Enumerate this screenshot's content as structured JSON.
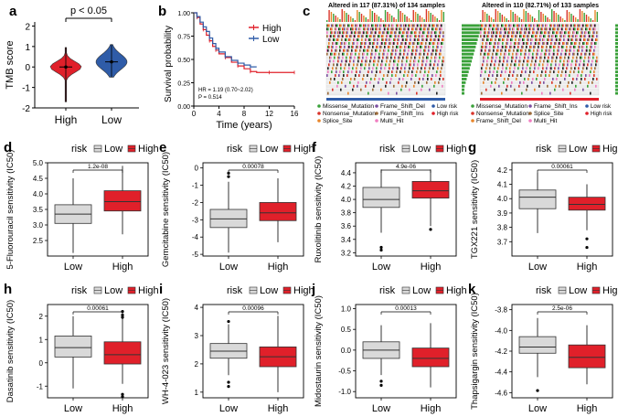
{
  "colors": {
    "high": "#e0202a",
    "low": "#2f5ca8",
    "low_box": "#d9d9d9",
    "axis": "#000000",
    "mut_green": "#3aa13a",
    "mut_red": "#d9342b",
    "mut_orange": "#e8862a",
    "mut_purple": "#7b4fa0",
    "mut_brown": "#9c6b3a",
    "mut_pink": "#f07dc0",
    "mut_black": "#222222"
  },
  "chart_data": [
    {
      "panel": "a",
      "type": "violin",
      "title": "",
      "xlabel": "",
      "ylabel": "TMB score",
      "categories": [
        "High",
        "Low"
      ],
      "ylim": [
        -2,
        2.2
      ],
      "yticks": [
        "-2",
        "-1",
        "0",
        "1",
        "2"
      ],
      "annotation": "p < 0.05",
      "series": [
        {
          "name": "High",
          "median": 0.0,
          "q1": -0.15,
          "q3": 0.2,
          "min": -1.7,
          "max": 0.95
        },
        {
          "name": "Low",
          "median": 0.25,
          "q1": 0.05,
          "q3": 0.55,
          "min": -0.5,
          "max": 1.1
        }
      ]
    },
    {
      "panel": "b",
      "type": "line",
      "title": "",
      "xlabel": "Time (years)",
      "ylabel": "Survival probability",
      "xlim": [
        0,
        16
      ],
      "ylim": [
        0,
        1
      ],
      "xticks": [
        "0",
        "4",
        "8",
        "12",
        "16"
      ],
      "yticks": [
        "0.00",
        "0.25",
        "0.50",
        "0.75",
        "1.00"
      ],
      "legend": [
        "High",
        "Low"
      ],
      "annotations": [
        "HR = 1.19 (0.70~2.02)",
        "P = 0.514"
      ],
      "series": [
        {
          "name": "High",
          "x": [
            0,
            0.5,
            1,
            1.5,
            2,
            2.5,
            3,
            3.5,
            4,
            5,
            6,
            7,
            8,
            9,
            10,
            12,
            14,
            16
          ],
          "y": [
            1,
            0.95,
            0.88,
            0.82,
            0.76,
            0.7,
            0.64,
            0.6,
            0.56,
            0.52,
            0.47,
            0.43,
            0.4,
            0.37,
            0.36,
            0.36,
            0.36,
            0.36
          ]
        },
        {
          "name": "Low",
          "x": [
            0,
            0.5,
            1,
            1.5,
            2,
            2.5,
            3,
            3.5,
            4,
            5,
            6,
            7,
            8,
            9,
            10
          ],
          "y": [
            1,
            0.96,
            0.9,
            0.85,
            0.8,
            0.73,
            0.67,
            0.62,
            0.58,
            0.53,
            0.49,
            0.46,
            0.44,
            0.42,
            0.42
          ]
        }
      ]
    },
    {
      "panel": "c",
      "type": "heatmap",
      "titles": [
        "Altered in 117 (87.31%) of 134 samples",
        "Altered in 110 (82.71%) of 133 samples"
      ],
      "rows": 20,
      "legend_left": [
        "Missense_Mutation",
        "Nonsense_Mutation",
        "Splice_Site",
        "Frame_Shift_Del",
        "Frame_Shift_Ins",
        "Multi_Hit"
      ],
      "legend_mid": [
        "Missense_Mutation",
        "Nonsense_Mutation",
        "Frame_Shift_Del",
        "Frame_Shift_Ins",
        "Splice_Site",
        "Multi_Hit"
      ],
      "risk_legend": [
        "Low risk",
        "High risk"
      ]
    },
    {
      "panel": "d",
      "type": "box",
      "ylabel": "5-Fluorouracil sensitivity (IC50)",
      "legend_title": "risk",
      "legend": [
        "Low",
        "High"
      ],
      "categories": [
        "Low",
        "High"
      ],
      "ylim": [
        2.0,
        5.0
      ],
      "yticks": [
        "2.5",
        "3.0",
        "3.5",
        "4.0",
        "4.5",
        "5.0"
      ],
      "pvalue": "1.2e-08",
      "series": [
        {
          "name": "Low",
          "min": 2.1,
          "q1": 3.05,
          "median": 3.35,
          "q3": 3.65,
          "max": 4.5,
          "outliers": []
        },
        {
          "name": "High",
          "min": 2.7,
          "q1": 3.45,
          "median": 3.75,
          "q3": 4.1,
          "max": 4.9,
          "outliers": []
        }
      ]
    },
    {
      "panel": "e",
      "type": "box",
      "ylabel": "Gemcitabine sensitivity (IC50)",
      "legend_title": "risk",
      "legend": [
        "Low",
        "High"
      ],
      "categories": [
        "Low",
        "High"
      ],
      "ylim": [
        -5.1,
        0.3
      ],
      "yticks": [
        "-5",
        "-4",
        "-3",
        "-2",
        "-1",
        "0"
      ],
      "pvalue": "0.00078",
      "series": [
        {
          "name": "Low",
          "min": -4.9,
          "q1": -3.45,
          "median": -2.95,
          "q3": -2.4,
          "max": -0.8,
          "outliers": [
            -0.3,
            -0.5
          ]
        },
        {
          "name": "High",
          "min": -4.3,
          "q1": -3.05,
          "median": -2.6,
          "q3": -2.0,
          "max": -0.6,
          "outliers": []
        }
      ]
    },
    {
      "panel": "f",
      "type": "box",
      "ylabel": "Ruxolitinib sensitivity (IC50)",
      "legend_title": "risk",
      "legend": [
        "Low",
        "High"
      ],
      "categories": [
        "Low",
        "High"
      ],
      "ylim": [
        3.15,
        4.55
      ],
      "yticks": [
        "3.2",
        "3.4",
        "3.6",
        "3.8",
        "4.0",
        "4.2",
        "4.4"
      ],
      "pvalue": "4.9e-06",
      "series": [
        {
          "name": "Low",
          "min": 3.5,
          "q1": 3.88,
          "median": 4.0,
          "q3": 4.18,
          "max": 4.45,
          "outliers": [
            3.28,
            3.24
          ]
        },
        {
          "name": "High",
          "min": 3.6,
          "q1": 4.02,
          "median": 4.13,
          "q3": 4.27,
          "max": 4.45,
          "outliers": [
            3.55
          ]
        }
      ]
    },
    {
      "panel": "g",
      "type": "box",
      "ylabel": "TGX221 sensitivity (IC50)",
      "legend_title": "risk",
      "legend": [
        "Low",
        "High"
      ],
      "categories": [
        "Low",
        "High"
      ],
      "ylim": [
        3.6,
        4.25
      ],
      "yticks": [
        "3.7",
        "3.8",
        "3.9",
        "4.0",
        "4.1",
        "4.2"
      ],
      "pvalue": "0.00061",
      "series": [
        {
          "name": "Low",
          "min": 3.76,
          "q1": 3.93,
          "median": 4.01,
          "q3": 4.06,
          "max": 4.18,
          "outliers": []
        },
        {
          "name": "High",
          "min": 3.78,
          "q1": 3.92,
          "median": 3.96,
          "q3": 4.01,
          "max": 4.1,
          "outliers": [
            3.72,
            3.66
          ]
        }
      ]
    },
    {
      "panel": "h",
      "type": "box",
      "ylabel": "Dasatinib sensitivity (IC50)",
      "legend_title": "risk",
      "legend": [
        "Low",
        "High"
      ],
      "categories": [
        "Low",
        "High"
      ],
      "ylim": [
        -1.5,
        2.5
      ],
      "yticks": [
        "-1",
        "0",
        "1",
        "2"
      ],
      "pvalue": "0.00061",
      "series": [
        {
          "name": "Low",
          "min": -1.1,
          "q1": 0.25,
          "median": 0.65,
          "q3": 1.15,
          "max": 2.0,
          "outliers": []
        },
        {
          "name": "High",
          "min": -0.9,
          "q1": -0.05,
          "median": 0.35,
          "q3": 0.9,
          "max": 1.9,
          "outliers": [
            2.2,
            2.05,
            1.95,
            -1.35,
            -1.45
          ]
        }
      ]
    },
    {
      "panel": "i",
      "type": "box",
      "ylabel": "WH-4-023 sensitivity (IC50)",
      "legend_title": "risk",
      "legend": [
        "Low",
        "High"
      ],
      "categories": [
        "Low",
        "High"
      ],
      "ylim": [
        0.8,
        4.1
      ],
      "yticks": [
        "1",
        "2",
        "3",
        "4"
      ],
      "pvalue": "0.00096",
      "series": [
        {
          "name": "Low",
          "min": 1.6,
          "q1": 2.2,
          "median": 2.45,
          "q3": 2.72,
          "max": 3.4,
          "outliers": [
            1.35,
            1.2,
            3.5
          ]
        },
        {
          "name": "High",
          "min": 1.0,
          "q1": 1.9,
          "median": 2.25,
          "q3": 2.6,
          "max": 3.7,
          "outliers": []
        }
      ]
    },
    {
      "panel": "j",
      "type": "box",
      "ylabel": "Midostaurin sensitivity (IC50)",
      "legend_title": "risk",
      "legend": [
        "Low",
        "High"
      ],
      "categories": [
        "Low",
        "High"
      ],
      "ylim": [
        -1.15,
        1.1
      ],
      "yticks": [
        "-1.0",
        "-0.5",
        "0.0",
        "0.5",
        "1.0"
      ],
      "pvalue": "0.00013",
      "series": [
        {
          "name": "Low",
          "min": -0.6,
          "q1": -0.2,
          "median": 0.0,
          "q3": 0.2,
          "max": 0.6,
          "outliers": [
            -0.75,
            -0.85
          ]
        },
        {
          "name": "High",
          "min": -0.9,
          "q1": -0.4,
          "median": -0.2,
          "q3": 0.05,
          "max": 0.65,
          "outliers": []
        }
      ]
    },
    {
      "panel": "k",
      "type": "box",
      "ylabel": "Thapsigargin sensitivity (IC50)",
      "legend_title": "risk",
      "legend": [
        "Low",
        "High"
      ],
      "categories": [
        "Low",
        "High"
      ],
      "ylim": [
        -4.65,
        -3.75
      ],
      "yticks": [
        "-4.6",
        "-4.4",
        "-4.2",
        "-4.0",
        "-3.8"
      ],
      "pvalue": "2.5e-06",
      "series": [
        {
          "name": "Low",
          "min": -4.45,
          "q1": -4.22,
          "median": -4.16,
          "q3": -4.06,
          "max": -3.88,
          "outliers": [
            -4.58
          ]
        },
        {
          "name": "High",
          "min": -4.52,
          "q1": -4.36,
          "median": -4.26,
          "q3": -4.14,
          "max": -3.95,
          "outliers": []
        }
      ]
    }
  ]
}
